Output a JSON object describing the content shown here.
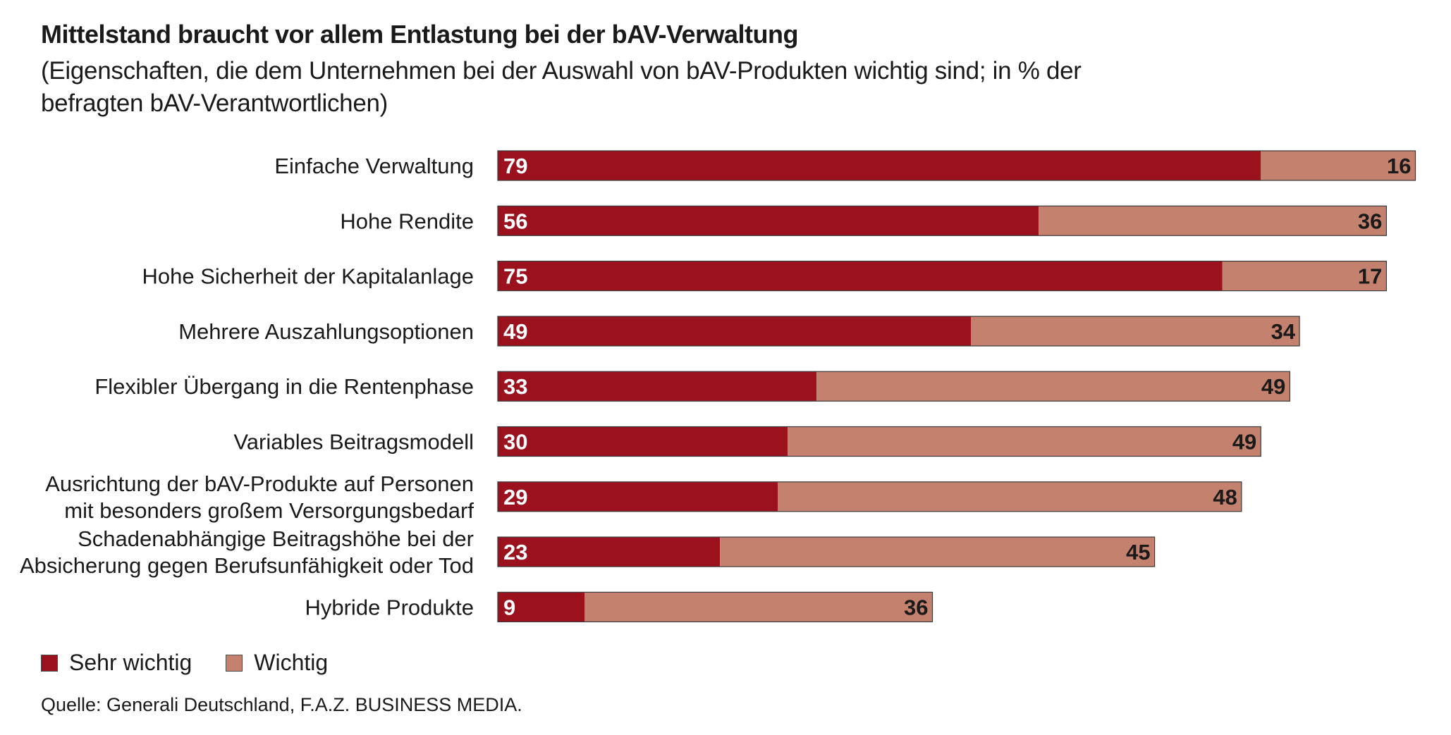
{
  "header": {
    "title": "Mittelstand braucht vor allem Entlastung bei der bAV-Verwaltung",
    "subtitle": "(Eigenschaften, die dem Unternehmen bei der Auswahl von bAV-Produkten wichtig sind; in % der befragten bAV-Verantwortlichen)"
  },
  "legend": {
    "items": [
      {
        "label": "Sehr wichtig",
        "color": "#9b111e"
      },
      {
        "label": "Wichtig",
        "color": "#c4826e"
      }
    ]
  },
  "source": "Quelle: Generali Deutschland, F.A.Z. BUSINESS MEDIA.",
  "chart_data": {
    "type": "bar",
    "orientation": "horizontal",
    "stacked": true,
    "title": "Mittelstand braucht vor allem Entlastung bei der bAV-Verwaltung",
    "subtitle": "(Eigenschaften, die dem Unternehmen bei der Auswahl von bAV-Produkten wichtig sind; in % der befragten bAV-Verantwortlichen)",
    "categories": [
      [
        "Einfache Verwaltung"
      ],
      [
        "Hohe Rendite"
      ],
      [
        "Hohe Sicherheit der Kapitalanlage"
      ],
      [
        "Mehrere Auszahlungsoptionen"
      ],
      [
        "Flexibler Übergang in die Rentenphase"
      ],
      [
        "Variables Beitragsmodell"
      ],
      [
        "Ausrichtung der bAV-Produkte auf Personen",
        "mit besonders großem Versorgungsbedarf"
      ],
      [
        "Schadenabhängige Beitragshöhe bei der",
        "Absicherung gegen Berufsunfähigkeit oder Tod"
      ],
      [
        "Hybride Produkte"
      ]
    ],
    "series": [
      {
        "name": "Sehr wichtig",
        "color": "#9b111e",
        "label_color": "#ffffff",
        "values": [
          79,
          56,
          75,
          49,
          33,
          30,
          29,
          23,
          9
        ]
      },
      {
        "name": "Wichtig",
        "color": "#c4826e",
        "label_color": "#1a1a1a",
        "values": [
          16,
          36,
          17,
          34,
          49,
          49,
          48,
          45,
          36
        ]
      }
    ],
    "xlim": [
      0,
      95
    ],
    "grid": false,
    "legend_position": "bottom-left",
    "xlabel": "",
    "ylabel": ""
  }
}
